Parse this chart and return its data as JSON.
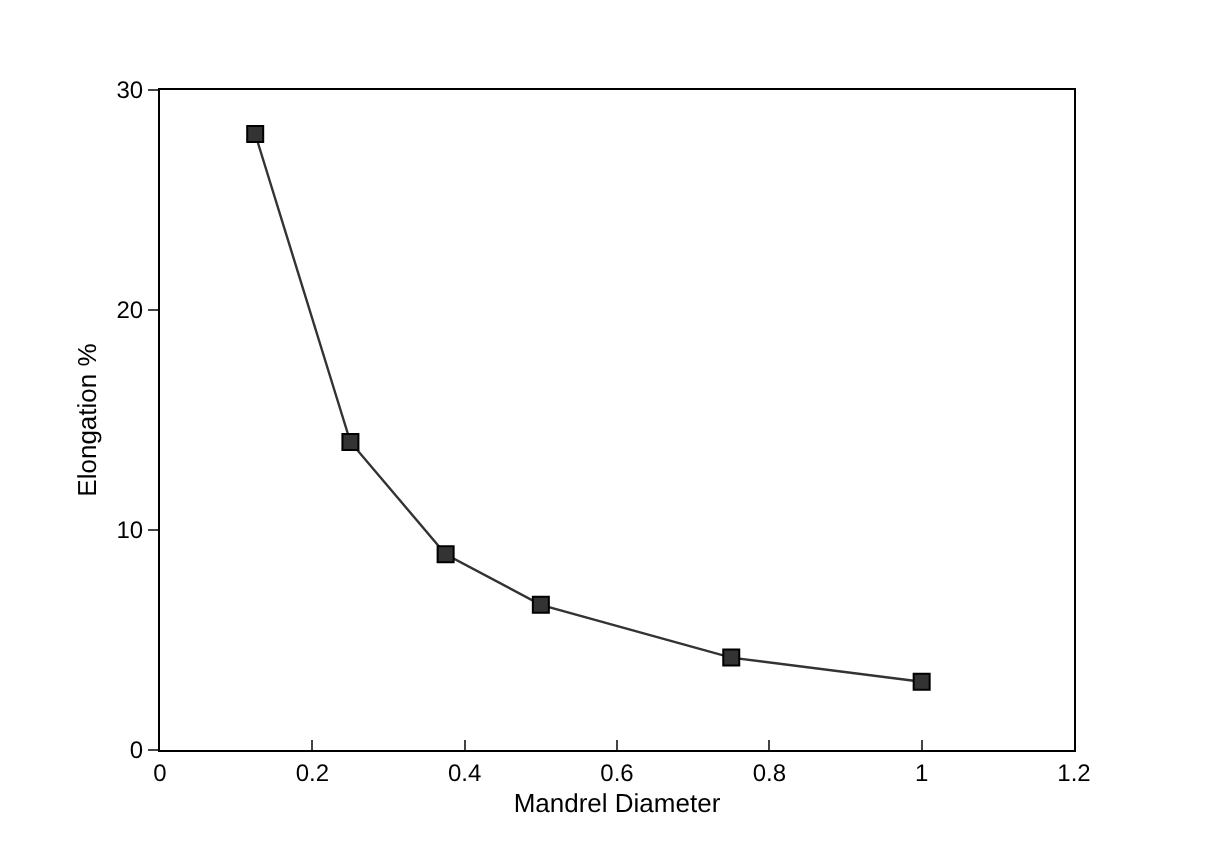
{
  "chart_data": {
    "type": "line",
    "xlabel": "Mandrel Diameter",
    "ylabel": "Elongation %",
    "x": [
      0.125,
      0.25,
      0.375,
      0.5,
      0.75,
      1.0
    ],
    "series": [
      {
        "color": "#333333",
        "values": [
          28,
          14,
          8.9,
          6.6,
          4.2,
          3.1
        ]
      }
    ],
    "xlim": [
      0,
      1.2
    ],
    "xticks": [
      0,
      0.2,
      0.4,
      0.6,
      0.8,
      1,
      1.2
    ],
    "ylim": [
      0,
      30
    ],
    "yticks": [
      0,
      10,
      20,
      30
    ],
    "marker": "square",
    "line_style": "solid"
  }
}
